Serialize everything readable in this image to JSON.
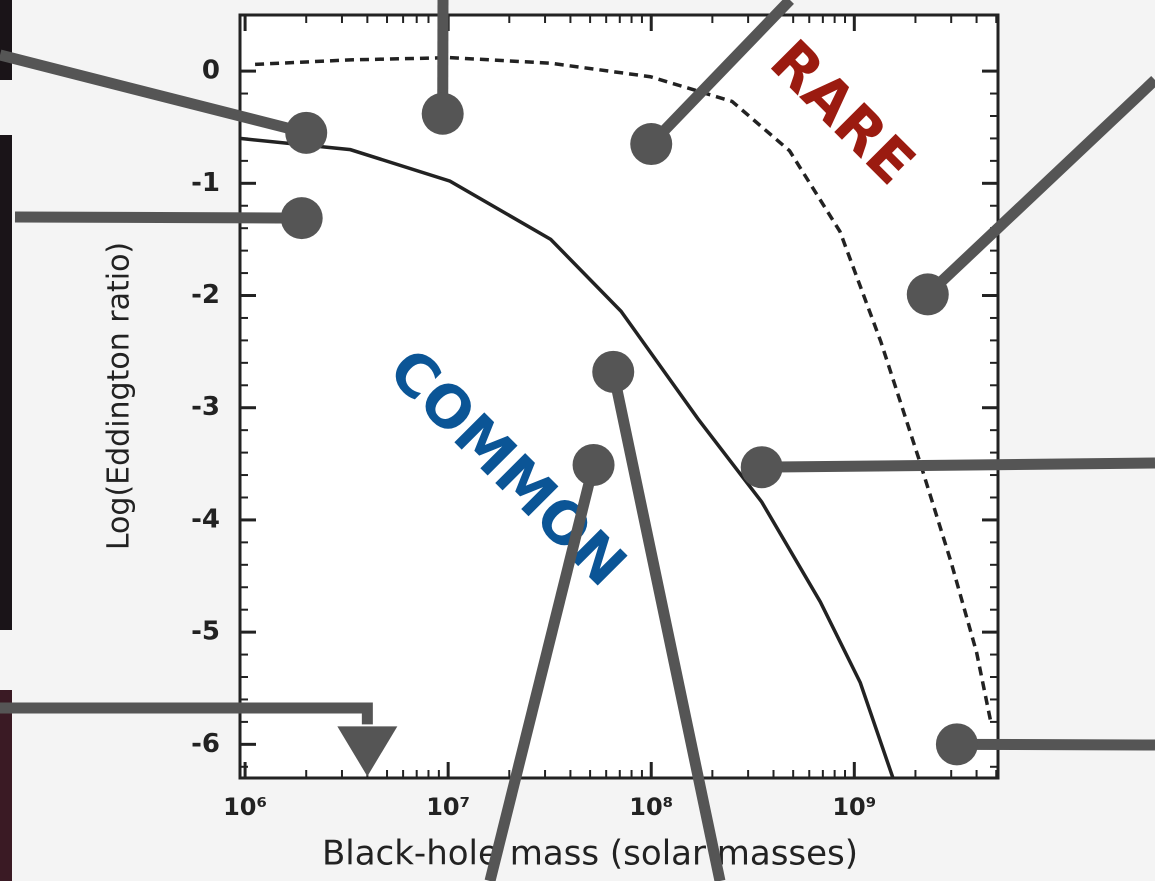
{
  "chart_data": {
    "type": "scatter",
    "x_label": "Black-hole mass (solar masses)",
    "y_label": "Log(Eddington ratio)",
    "annotations": [
      "RARE",
      "COMMON"
    ],
    "xscale": "log",
    "xlim": [
      944000,
      5100000000
    ],
    "ylim": [
      -6.3,
      0.5
    ],
    "xticks": [
      {
        "value": 1000000,
        "label": "10⁶"
      },
      {
        "value": 10000000,
        "label": "10⁷"
      },
      {
        "value": 100000000,
        "label": "10⁸"
      },
      {
        "value": 1000000000,
        "label": "10⁹"
      }
    ],
    "yticks": [
      0,
      -1,
      -2,
      -3,
      -4,
      -5,
      -6
    ],
    "color": "#555555",
    "points": {
      "x": [
        2000000,
        1900000,
        9400000,
        100000000,
        2300000000,
        65000000,
        52000000,
        350000000,
        3200000000
      ],
      "values": [
        -0.55,
        -1.31,
        -0.38,
        -0.65,
        -1.99,
        -2.68,
        -3.51,
        -3.53,
        -6.0
      ]
    },
    "upper_limits": {
      "x": [
        4000000
      ],
      "values": [
        -6.0
      ]
    },
    "curves": [
      {
        "style": "solid",
        "x": [
          944000,
          3300000,
          10200000,
          32000000,
          71000000,
          170000000,
          350000000,
          680000000,
          1070000000,
          1550000000
        ],
        "values": [
          -0.6,
          -0.7,
          -0.98,
          -1.5,
          -2.14,
          -3.1,
          -3.84,
          -4.73,
          -5.45,
          -6.3
        ]
      },
      {
        "style": "dashed",
        "x": [
          1120000,
          3300000,
          10200000,
          32000000,
          99000000,
          250000000,
          480000000,
          850000000,
          1350000000,
          2100000000,
          3000000000,
          4000000000,
          4700000000
        ],
        "values": [
          0.06,
          0.1,
          0.12,
          0.07,
          -0.05,
          -0.27,
          -0.71,
          -1.43,
          -2.41,
          -3.48,
          -4.38,
          -5.18,
          -5.8
        ]
      }
    ]
  }
}
